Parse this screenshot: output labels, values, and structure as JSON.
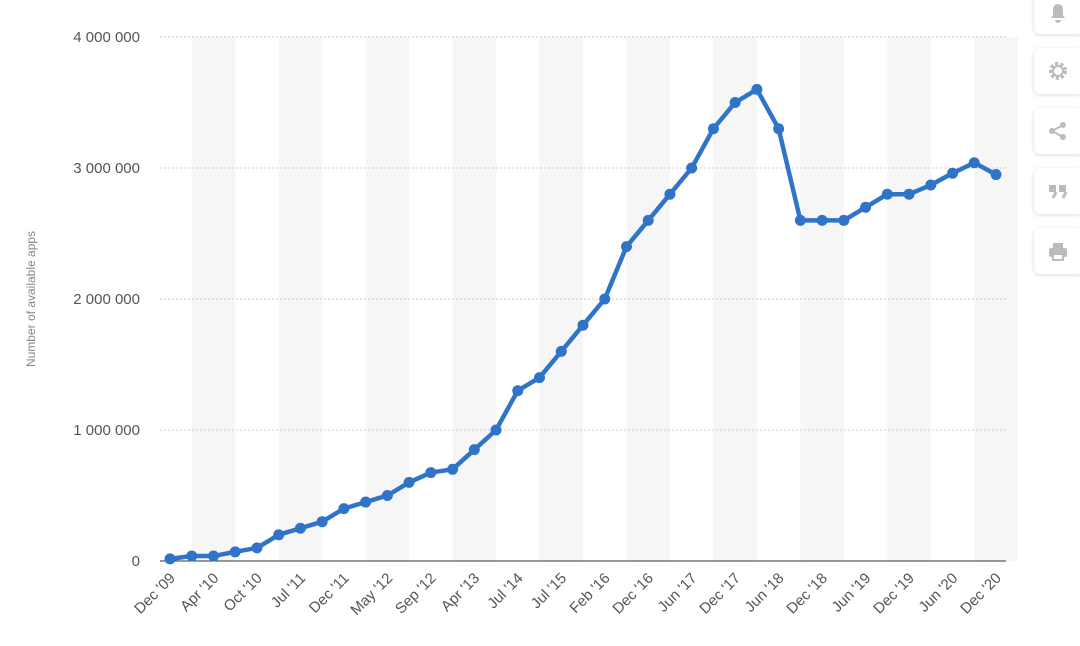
{
  "chart_data": {
    "type": "line",
    "y_label": "Number of available apps",
    "categories": [
      "Dec '09",
      null,
      "Apr '10",
      null,
      "Oct '10",
      null,
      "Jul '11",
      null,
      "Dec '11",
      null,
      "May '12",
      null,
      "Sep '12",
      null,
      "Apr '13",
      null,
      "Jul '14",
      null,
      "Jul '15",
      null,
      "Feb '16",
      null,
      "Dec '16",
      null,
      "Jun '17",
      null,
      "Dec '17",
      null,
      "Jun '18",
      null,
      "Dec '18",
      null,
      "Jun '19",
      null,
      "Dec '19",
      null,
      "Jun '20",
      null,
      "Dec '20"
    ],
    "series": [
      {
        "name": "Number of available apps",
        "color": "#2f74c8",
        "values": [
          16000,
          38000,
          38000,
          70000,
          100000,
          200000,
          250000,
          300000,
          400000,
          450000,
          500000,
          600000,
          675000,
          700000,
          850000,
          1000000,
          1300000,
          1400000,
          1600000,
          1800000,
          2000000,
          2400000,
          2600000,
          2800000,
          3000000,
          3300000,
          3500000,
          3600000,
          3300000,
          2600000,
          2600000,
          2600000,
          2700000,
          2800000,
          2800000,
          2870000,
          2960000,
          3040000,
          2950000
        ]
      }
    ],
    "ylim": [
      0,
      4000000
    ],
    "yticks": [
      0,
      {
        "value": 1000000,
        "label": "1 000 000"
      },
      {
        "value": 2000000,
        "label": "2 000 000"
      },
      {
        "value": 3000000,
        "label": "3 000 000"
      },
      {
        "value": 4000000,
        "label": "4 000 000"
      }
    ],
    "grid": true
  }
}
